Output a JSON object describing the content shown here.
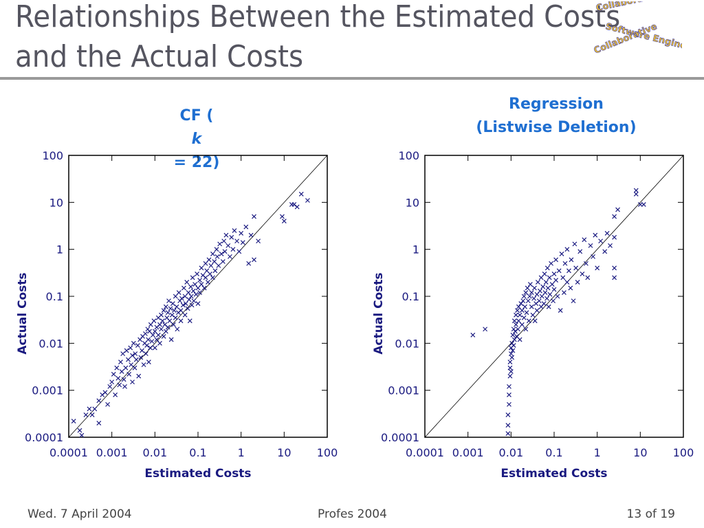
{
  "slide": {
    "title_line1": "Relationships Between the Estimated Costs",
    "title_line2": "and the Actual Costs",
    "footer_left": "Wed. 7 April 2004",
    "footer_center": "Profes 2004",
    "footer_right": "13 of 19",
    "logo_text": [
      "Collaborative",
      "Software Engineering",
      "Collaborative"
    ]
  },
  "colors": {
    "title": "#555560",
    "chart_title": "#1f6fd1",
    "axis_text": "#1a1a80",
    "marker": "#1a1a80",
    "rule": "#9a9a9a"
  },
  "chart_data": [
    {
      "type": "scatter",
      "title_prefix": "CF (",
      "title_var": "k",
      "title_suffix": " = 22)",
      "xlabel": "Estimated Costs",
      "ylabel": "Actual Costs",
      "xscale": "log",
      "yscale": "log",
      "xlim": [
        0.0001,
        100
      ],
      "ylim": [
        0.0001,
        100
      ],
      "xticks": [
        "0.0001",
        "0.001",
        "0.01",
        "0.1",
        "1",
        "10",
        "100"
      ],
      "yticks": [
        "0.0001",
        "0.001",
        "0.01",
        "0.1",
        "1",
        "10",
        "100"
      ],
      "reference_line": "y = x",
      "marker": "x",
      "points": [
        [
          0.00013,
          0.00022
        ],
        [
          0.00018,
          0.00014
        ],
        [
          0.0002,
          0.00011
        ],
        [
          0.00025,
          0.0003
        ],
        [
          0.0003,
          0.0004
        ],
        [
          0.00035,
          0.0003
        ],
        [
          0.0004,
          0.0004
        ],
        [
          0.0005,
          0.0002
        ],
        [
          0.0005,
          0.0006
        ],
        [
          0.0006,
          0.0008
        ],
        [
          0.0007,
          0.0009
        ],
        [
          0.0008,
          0.0005
        ],
        [
          0.0009,
          0.0012
        ],
        [
          0.001,
          0.0015
        ],
        [
          0.0011,
          0.0022
        ],
        [
          0.0012,
          0.0008
        ],
        [
          0.0013,
          0.003
        ],
        [
          0.0014,
          0.0018
        ],
        [
          0.0015,
          0.0013
        ],
        [
          0.0016,
          0.004
        ],
        [
          0.0017,
          0.0025
        ],
        [
          0.0018,
          0.006
        ],
        [
          0.0019,
          0.0017
        ],
        [
          0.002,
          0.0012
        ],
        [
          0.0021,
          0.003
        ],
        [
          0.0022,
          0.007
        ],
        [
          0.0024,
          0.0045
        ],
        [
          0.0025,
          0.0022
        ],
        [
          0.0027,
          0.008
        ],
        [
          0.0028,
          0.0035
        ],
        [
          0.003,
          0.0015
        ],
        [
          0.003,
          0.0055
        ],
        [
          0.0032,
          0.01
        ],
        [
          0.0034,
          0.003
        ],
        [
          0.0035,
          0.006
        ],
        [
          0.0037,
          0.0045
        ],
        [
          0.004,
          0.009
        ],
        [
          0.0042,
          0.002
        ],
        [
          0.0045,
          0.012
        ],
        [
          0.0047,
          0.005
        ],
        [
          0.005,
          0.007
        ],
        [
          0.0052,
          0.014
        ],
        [
          0.0055,
          0.0035
        ],
        [
          0.0058,
          0.01
        ],
        [
          0.006,
          0.016
        ],
        [
          0.0062,
          0.006
        ],
        [
          0.0065,
          0.009
        ],
        [
          0.0068,
          0.02
        ],
        [
          0.007,
          0.012
        ],
        [
          0.0072,
          0.004
        ],
        [
          0.0075,
          0.018
        ],
        [
          0.0078,
          0.008
        ],
        [
          0.008,
          0.025
        ],
        [
          0.0085,
          0.011
        ],
        [
          0.009,
          0.015
        ],
        [
          0.0095,
          0.03
        ],
        [
          0.01,
          0.018
        ],
        [
          0.01,
          0.008
        ],
        [
          0.011,
          0.022
        ],
        [
          0.011,
          0.012
        ],
        [
          0.012,
          0.035
        ],
        [
          0.012,
          0.015
        ],
        [
          0.013,
          0.025
        ],
        [
          0.013,
          0.01
        ],
        [
          0.014,
          0.04
        ],
        [
          0.014,
          0.02
        ],
        [
          0.015,
          0.03
        ],
        [
          0.016,
          0.014
        ],
        [
          0.016,
          0.05
        ],
        [
          0.017,
          0.025
        ],
        [
          0.018,
          0.06
        ],
        [
          0.018,
          0.018
        ],
        [
          0.019,
          0.035
        ],
        [
          0.02,
          0.045
        ],
        [
          0.02,
          0.022
        ],
        [
          0.021,
          0.08
        ],
        [
          0.022,
          0.03
        ],
        [
          0.023,
          0.055
        ],
        [
          0.024,
          0.012
        ],
        [
          0.025,
          0.04
        ],
        [
          0.026,
          0.07
        ],
        [
          0.027,
          0.025
        ],
        [
          0.028,
          0.05
        ],
        [
          0.03,
          0.1
        ],
        [
          0.03,
          0.035
        ],
        [
          0.032,
          0.06
        ],
        [
          0.033,
          0.02
        ],
        [
          0.035,
          0.045
        ],
        [
          0.036,
          0.12
        ],
        [
          0.038,
          0.08
        ],
        [
          0.04,
          0.05
        ],
        [
          0.04,
          0.03
        ],
        [
          0.042,
          0.09
        ],
        [
          0.045,
          0.065
        ],
        [
          0.047,
          0.15
        ],
        [
          0.05,
          0.04
        ],
        [
          0.05,
          0.1
        ],
        [
          0.052,
          0.07
        ],
        [
          0.055,
          0.2
        ],
        [
          0.058,
          0.055
        ],
        [
          0.06,
          0.12
        ],
        [
          0.062,
          0.085
        ],
        [
          0.065,
          0.03
        ],
        [
          0.068,
          0.16
        ],
        [
          0.07,
          0.1
        ],
        [
          0.072,
          0.065
        ],
        [
          0.075,
          0.25
        ],
        [
          0.078,
          0.13
        ],
        [
          0.08,
          0.08
        ],
        [
          0.085,
          0.18
        ],
        [
          0.09,
          0.11
        ],
        [
          0.095,
          0.3
        ],
        [
          0.1,
          0.15
        ],
        [
          0.1,
          0.07
        ],
        [
          0.11,
          0.22
        ],
        [
          0.11,
          0.12
        ],
        [
          0.12,
          0.4
        ],
        [
          0.12,
          0.18
        ],
        [
          0.13,
          0.28
        ],
        [
          0.14,
          0.15
        ],
        [
          0.15,
          0.5
        ],
        [
          0.15,
          0.25
        ],
        [
          0.16,
          0.35
        ],
        [
          0.17,
          0.2
        ],
        [
          0.18,
          0.6
        ],
        [
          0.19,
          0.3
        ],
        [
          0.2,
          0.45
        ],
        [
          0.22,
          0.8
        ],
        [
          0.22,
          0.25
        ],
        [
          0.24,
          0.55
        ],
        [
          0.25,
          0.35
        ],
        [
          0.27,
          1.0
        ],
        [
          0.28,
          0.7
        ],
        [
          0.3,
          0.45
        ],
        [
          0.32,
          1.3
        ],
        [
          0.35,
          0.8
        ],
        [
          0.38,
          0.55
        ],
        [
          0.4,
          1.5
        ],
        [
          0.42,
          0.9
        ],
        [
          0.45,
          2.0
        ],
        [
          0.5,
          1.2
        ],
        [
          0.55,
          0.7
        ],
        [
          0.6,
          1.8
        ],
        [
          0.65,
          1.0
        ],
        [
          0.7,
          2.5
        ],
        [
          0.8,
          1.5
        ],
        [
          0.9,
          0.9
        ],
        [
          1.0,
          2.2
        ],
        [
          1.1,
          1.4
        ],
        [
          1.3,
          3.0
        ],
        [
          1.5,
          0.5
        ],
        [
          1.7,
          2.0
        ],
        [
          2.0,
          0.6
        ],
        [
          2.0,
          5.0
        ],
        [
          2.5,
          1.5
        ],
        [
          9,
          5
        ],
        [
          10,
          4
        ],
        [
          15,
          9
        ],
        [
          17,
          9
        ],
        [
          20,
          8
        ],
        [
          25,
          15
        ],
        [
          35,
          11
        ]
      ]
    },
    {
      "type": "scatter",
      "title_line1": "Regression",
      "title_line2": "(Listwise Deletion)",
      "xlabel": "Estimated Costs",
      "ylabel": "Actual Costs",
      "xscale": "log",
      "yscale": "log",
      "xlim": [
        0.0001,
        100
      ],
      "ylim": [
        0.0001,
        100
      ],
      "xticks": [
        "0.0001",
        "0.001",
        "0.01",
        "0.1",
        "1",
        "10",
        "100"
      ],
      "yticks": [
        "0.0001",
        "0.001",
        "0.01",
        "0.1",
        "1",
        "10",
        "100"
      ],
      "reference_line": "y = x",
      "marker": "x",
      "points": [
        [
          0.0013,
          0.015
        ],
        [
          0.0025,
          0.02
        ],
        [
          0.0085,
          0.00012
        ],
        [
          0.0085,
          0.00018
        ],
        [
          0.0085,
          0.0003
        ],
        [
          0.009,
          0.0005
        ],
        [
          0.009,
          0.0008
        ],
        [
          0.009,
          0.0012
        ],
        [
          0.0095,
          0.002
        ],
        [
          0.0095,
          0.003
        ],
        [
          0.0095,
          0.004
        ],
        [
          0.01,
          0.0025
        ],
        [
          0.01,
          0.006
        ],
        [
          0.01,
          0.008
        ],
        [
          0.0105,
          0.005
        ],
        [
          0.0105,
          0.01
        ],
        [
          0.011,
          0.007
        ],
        [
          0.011,
          0.015
        ],
        [
          0.0115,
          0.009
        ],
        [
          0.0115,
          0.02
        ],
        [
          0.012,
          0.012
        ],
        [
          0.012,
          0.03
        ],
        [
          0.0125,
          0.018
        ],
        [
          0.013,
          0.025
        ],
        [
          0.013,
          0.04
        ],
        [
          0.0135,
          0.014
        ],
        [
          0.014,
          0.05
        ],
        [
          0.0145,
          0.02
        ],
        [
          0.015,
          0.03
        ],
        [
          0.015,
          0.06
        ],
        [
          0.016,
          0.04
        ],
        [
          0.016,
          0.012
        ],
        [
          0.017,
          0.07
        ],
        [
          0.018,
          0.025
        ],
        [
          0.018,
          0.05
        ],
        [
          0.019,
          0.08
        ],
        [
          0.02,
          0.035
        ],
        [
          0.02,
          0.1
        ],
        [
          0.021,
          0.06
        ],
        [
          0.022,
          0.12
        ],
        [
          0.022,
          0.02
        ],
        [
          0.023,
          0.045
        ],
        [
          0.024,
          0.15
        ],
        [
          0.025,
          0.08
        ],
        [
          0.026,
          0.03
        ],
        [
          0.027,
          0.1
        ],
        [
          0.028,
          0.18
        ],
        [
          0.03,
          0.06
        ],
        [
          0.03,
          0.12
        ],
        [
          0.032,
          0.04
        ],
        [
          0.034,
          0.09
        ],
        [
          0.035,
          0.15
        ],
        [
          0.036,
          0.03
        ],
        [
          0.038,
          0.07
        ],
        [
          0.04,
          0.11
        ],
        [
          0.04,
          0.05
        ],
        [
          0.042,
          0.2
        ],
        [
          0.045,
          0.08
        ],
        [
          0.047,
          0.13
        ],
        [
          0.05,
          0.06
        ],
        [
          0.05,
          0.25
        ],
        [
          0.052,
          0.1
        ],
        [
          0.055,
          0.16
        ],
        [
          0.058,
          0.07
        ],
        [
          0.06,
          0.3
        ],
        [
          0.062,
          0.12
        ],
        [
          0.065,
          0.2
        ],
        [
          0.068,
          0.09
        ],
        [
          0.07,
          0.4
        ],
        [
          0.072,
          0.15
        ],
        [
          0.075,
          0.06
        ],
        [
          0.078,
          0.25
        ],
        [
          0.08,
          0.11
        ],
        [
          0.085,
          0.5
        ],
        [
          0.09,
          0.18
        ],
        [
          0.095,
          0.08
        ],
        [
          0.1,
          0.3
        ],
        [
          0.1,
          0.14
        ],
        [
          0.11,
          0.6
        ],
        [
          0.11,
          0.22
        ],
        [
          0.12,
          0.1
        ],
        [
          0.13,
          0.35
        ],
        [
          0.14,
          0.05
        ],
        [
          0.15,
          0.8
        ],
        [
          0.16,
          0.25
        ],
        [
          0.17,
          0.12
        ],
        [
          0.18,
          0.5
        ],
        [
          0.2,
          0.2
        ],
        [
          0.2,
          1.0
        ],
        [
          0.22,
          0.35
        ],
        [
          0.24,
          0.15
        ],
        [
          0.25,
          0.6
        ],
        [
          0.28,
          0.08
        ],
        [
          0.3,
          1.3
        ],
        [
          0.32,
          0.4
        ],
        [
          0.35,
          0.2
        ],
        [
          0.4,
          0.9
        ],
        [
          0.45,
          0.3
        ],
        [
          0.5,
          1.6
        ],
        [
          0.55,
          0.5
        ],
        [
          0.6,
          0.25
        ],
        [
          0.7,
          1.2
        ],
        [
          0.8,
          0.7
        ],
        [
          0.9,
          2.0
        ],
        [
          1.0,
          0.4
        ],
        [
          1.2,
          1.5
        ],
        [
          1.5,
          0.9
        ],
        [
          1.7,
          2.2
        ],
        [
          2.0,
          1.2
        ],
        [
          2.5,
          1.8
        ],
        [
          2.5,
          0.25
        ],
        [
          2.5,
          0.4
        ],
        [
          2.5,
          5
        ],
        [
          3,
          7
        ],
        [
          8,
          15
        ],
        [
          8,
          18
        ],
        [
          10,
          9
        ],
        [
          12,
          9
        ]
      ]
    }
  ]
}
